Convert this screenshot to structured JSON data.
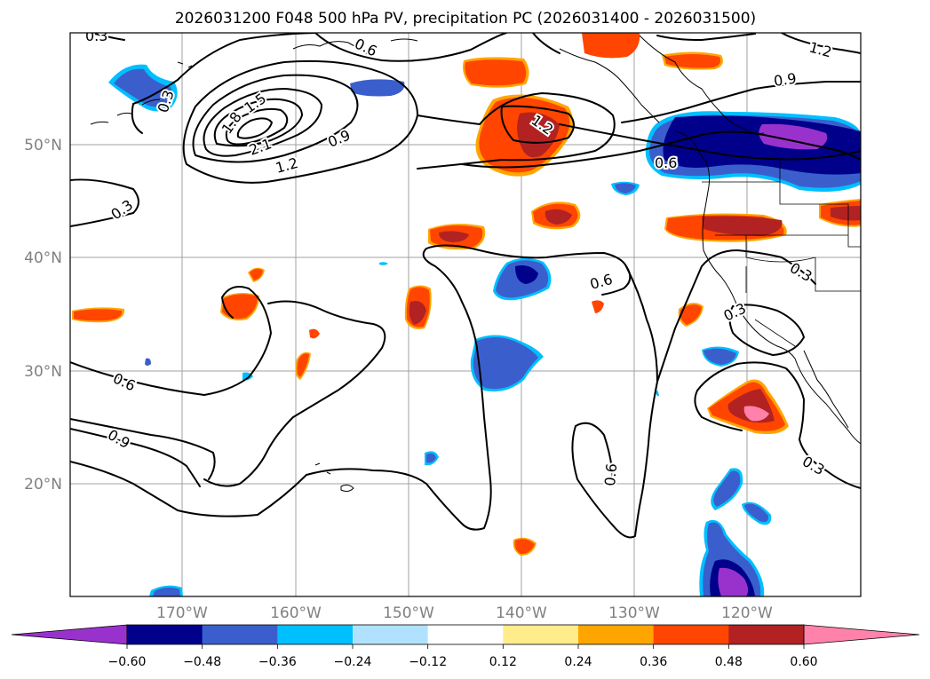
{
  "title": "2026031200 F048 500 hPa PV, precipitation PC (2026031400 - 2026031500)",
  "lon_labels": [
    "170°W",
    "160°W",
    "150°W",
    "140°W",
    "130°W",
    "120°W"
  ],
  "lat_labels": [
    "50°N",
    "40°N",
    "30°N",
    "20°N"
  ],
  "contour_labels": [
    "0.3",
    "0.6",
    "1.2",
    "0.9",
    "0.3",
    "1.5",
    "1.8",
    "2.1",
    "0.9",
    "1.2",
    "1.2",
    "0.6",
    "0.3",
    "0.6",
    "0.9",
    "0.6",
    "0.3",
    "0.3",
    "0.6",
    "0.3"
  ],
  "colorbar": {
    "colors": [
      "#9932CC",
      "#00008B",
      "#3A5FCD",
      "#00BFFF",
      "#B0E2FF",
      "#FFFFFF",
      "#FFEC8B",
      "#FFA500",
      "#FF4500",
      "#B22222",
      "#FF82AB"
    ],
    "ticks": [
      "−0.60",
      "−0.48",
      "−0.36",
      "−0.24",
      "−0.12",
      "0.12",
      "0.24",
      "0.36",
      "0.48",
      "0.60"
    ]
  }
}
